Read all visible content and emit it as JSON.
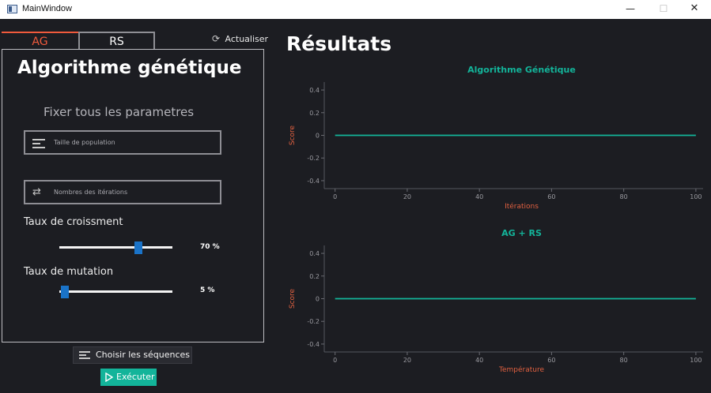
{
  "window": {
    "title": "MainWindow",
    "minimize_glyph": "—",
    "maximize_glyph": "☐",
    "close_glyph": "✕"
  },
  "tabs": [
    {
      "label": "AG",
      "active": true
    },
    {
      "label": "RS",
      "active": false
    }
  ],
  "refresh": {
    "label": "Actualiser",
    "icon": "refresh-icon"
  },
  "panel": {
    "title": "Algorithme génétique",
    "subtitle": "Fixer tous les parametres",
    "population_field": {
      "placeholder": "Taille de population",
      "value": "",
      "icon": "lines-icon"
    },
    "iterations_field": {
      "placeholder": "Nombres des itérations",
      "value": "",
      "icon": "cycle-icon"
    },
    "growth": {
      "label": "Taux de croissment",
      "value": 70,
      "display": "70 %"
    },
    "mutation": {
      "label": "Taux de mutation",
      "value": 5,
      "display": "5 %"
    }
  },
  "buttons": {
    "choose_sequences": "Choisir les séquences",
    "execute": "Exécuter"
  },
  "results_title": "Résultats",
  "colors": {
    "accent_orange": "#f05a3c",
    "accent_teal": "#13b49a",
    "slider_handle": "#1a73c8",
    "background": "#1c1d22"
  },
  "chart_data": [
    {
      "type": "line",
      "title": "Algorithme Génétique",
      "xlabel": "Itérations",
      "ylabel": "Score",
      "xlim": [
        -3,
        102
      ],
      "ylim": [
        -0.47,
        0.47
      ],
      "xticks": [
        0,
        20,
        40,
        60,
        80,
        100
      ],
      "yticks": [
        0.4,
        0.2,
        0,
        -0.2,
        -0.4
      ],
      "xtick_labels": [
        "0",
        "20",
        "40",
        "60",
        "80",
        "100"
      ],
      "ytick_labels": [
        "0.4",
        "0.2",
        "0",
        "-0.2",
        "-0.4"
      ],
      "series": [
        {
          "x": [
            0,
            100
          ],
          "y": [
            0,
            0
          ]
        }
      ]
    },
    {
      "type": "line",
      "title": "AG + RS",
      "xlabel": "Température",
      "ylabel": "Score",
      "xlim": [
        -3,
        102
      ],
      "ylim": [
        -0.47,
        0.47
      ],
      "xticks": [
        0,
        20,
        40,
        60,
        80,
        100
      ],
      "yticks": [
        0.4,
        0.2,
        0,
        -0.2,
        -0.4
      ],
      "xtick_labels": [
        "0",
        "20",
        "40",
        "60",
        "80",
        "100"
      ],
      "ytick_labels": [
        "0.4",
        "0.2",
        "0",
        "-0.2",
        "-0.4"
      ],
      "series": [
        {
          "x": [
            0,
            100
          ],
          "y": [
            0,
            0
          ]
        }
      ]
    }
  ]
}
